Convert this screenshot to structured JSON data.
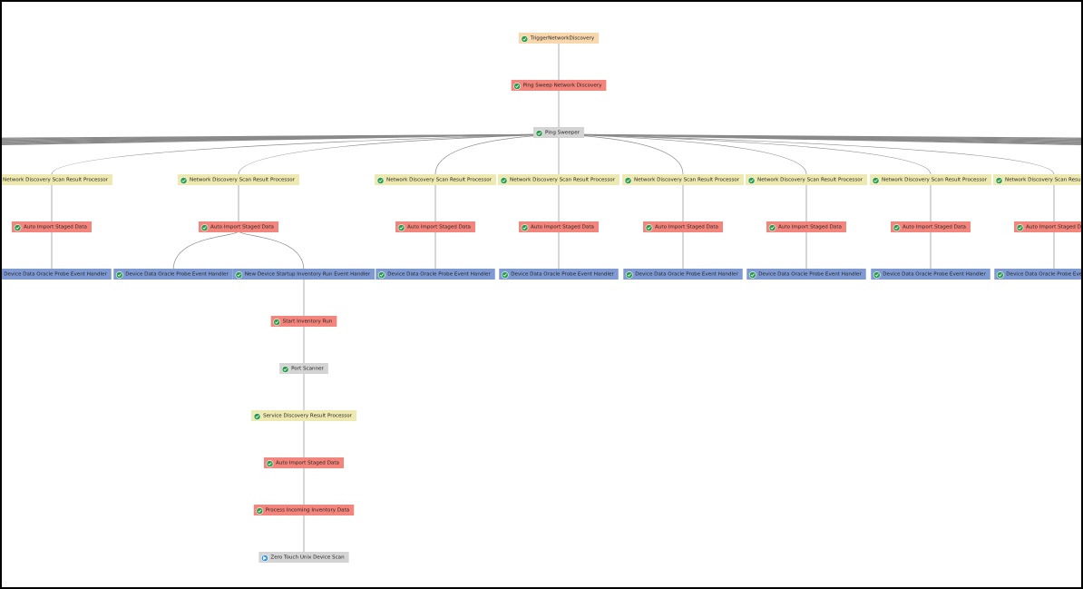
{
  "nodes": [
    {
      "label": "TriggerNetworkDiscovery"
    },
    {
      "label": "Ping Sweep Network Discovery"
    },
    {
      "label": "Ping Sweeper"
    },
    {
      "label": "Network Discovery Scan Result Processor"
    },
    {
      "label": "Network Discovery Scan Result Processor"
    },
    {
      "label": "Network Discovery Scan Result Processor"
    },
    {
      "label": "Network Discovery Scan Result Processor"
    },
    {
      "label": "Network Discovery Scan Result Processor"
    },
    {
      "label": "Network Discovery Scan Result Processor"
    },
    {
      "label": "Network Discovery Scan Result Processor"
    },
    {
      "label": "Network Discovery Scan Result Processor"
    },
    {
      "label": "Auto Import Staged Data"
    },
    {
      "label": "Auto Import Staged Data"
    },
    {
      "label": "Auto Import Staged Data"
    },
    {
      "label": "Auto Import Staged Data"
    },
    {
      "label": "Auto Import Staged Data"
    },
    {
      "label": "Auto Import Staged Data"
    },
    {
      "label": "Auto Import Staged Data"
    },
    {
      "label": "Auto Import Staged Data"
    },
    {
      "label": "Device Data Oracle Probe Event Handler"
    },
    {
      "label": "Device Data Oracle Probe Event Handler"
    },
    {
      "label": "Device Data Oracle Probe Event Handler"
    },
    {
      "label": "Device Data Oracle Probe Event Handler"
    },
    {
      "label": "Device Data Oracle Probe Event Handler"
    },
    {
      "label": "Device Data Oracle Probe Event Handler"
    },
    {
      "label": "Device Data Oracle Probe Event Handler"
    },
    {
      "label": "Device Data Oracle Probe Event Handler"
    },
    {
      "label": "New Device Startup Inventory Run Event Handler"
    },
    {
      "label": "Start Inventory Run"
    },
    {
      "label": "Port Scanner"
    },
    {
      "label": "Service Discovery Result Processor"
    },
    {
      "label": "Auto Import Staged Data"
    },
    {
      "label": "Process Incoming Inventory Data"
    },
    {
      "label": "Zero Touch Unix Device Scan"
    }
  ]
}
